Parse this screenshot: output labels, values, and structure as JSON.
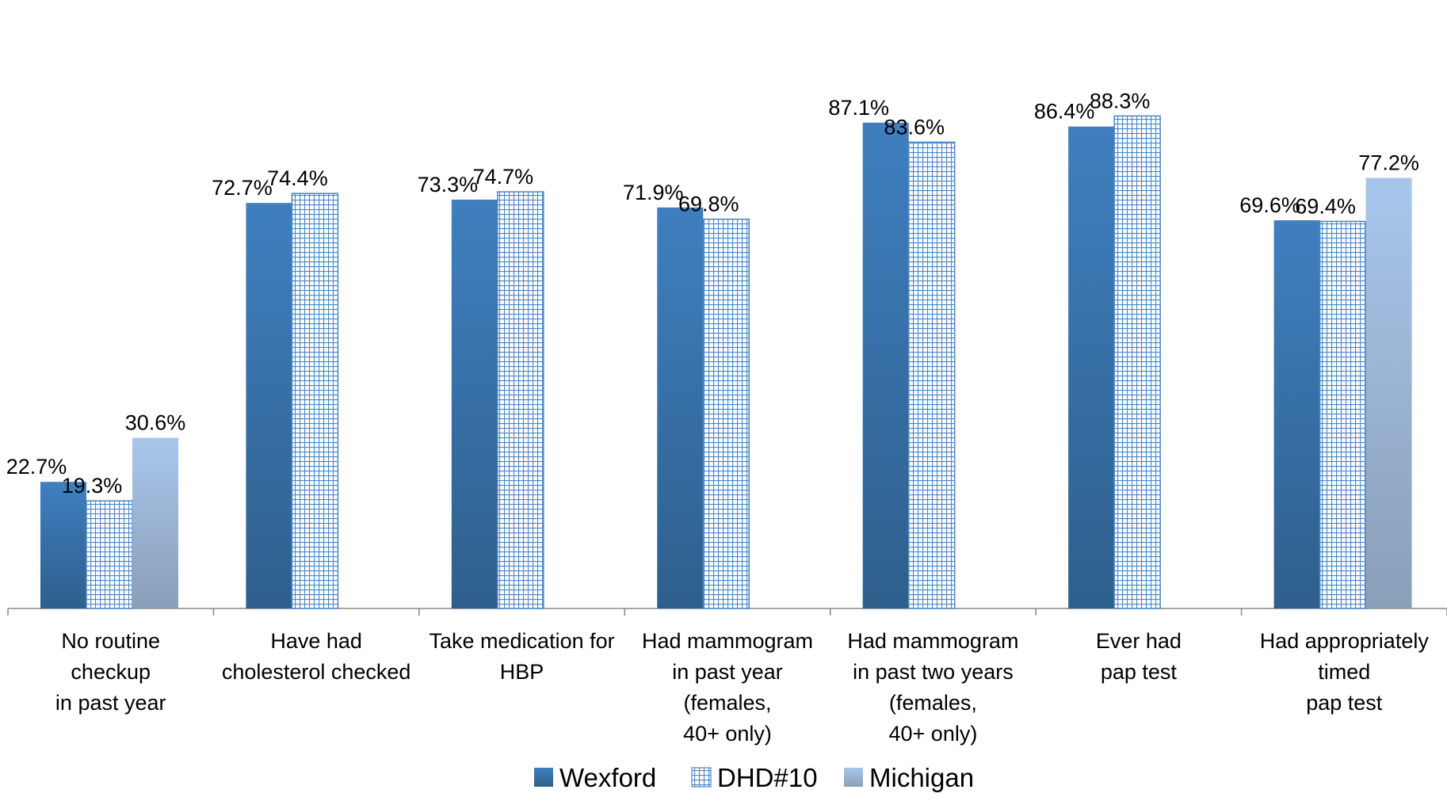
{
  "chart_data": {
    "type": "bar",
    "title": "",
    "xlabel": "",
    "ylabel": "",
    "ylim": [
      0,
      100
    ],
    "grid": false,
    "legend_position": "bottom",
    "categories": [
      [
        "No routine",
        "checkup",
        "in past year"
      ],
      [
        "Have had",
        "cholesterol checked"
      ],
      [
        "Take medication for",
        "HBP"
      ],
      [
        "Had mammogram",
        "in past year",
        "(females,",
        "40+ only)"
      ],
      [
        "Had mammogram",
        "in past two years",
        "(females,",
        "40+ only)"
      ],
      [
        "Ever had",
        "pap test"
      ],
      [
        "Had appropriately",
        "timed",
        "pap test"
      ]
    ],
    "series": [
      {
        "name": "Wexford",
        "values": [
          22.7,
          72.7,
          73.3,
          71.9,
          87.1,
          86.4,
          69.6
        ],
        "labels": [
          "22.7%",
          "72.7%",
          "73.3%",
          "71.9%",
          "87.1%",
          "86.4%",
          "69.6%"
        ],
        "color": "#3d79b5",
        "style": "gradient-solid"
      },
      {
        "name": "DHD#10",
        "values": [
          19.3,
          74.4,
          74.7,
          69.8,
          83.6,
          88.3,
          69.4
        ],
        "labels": [
          "19.3%",
          "74.4%",
          "74.7%",
          "69.8%",
          "83.6%",
          "88.3%",
          "69.4%"
        ],
        "color": "#4a86c8",
        "style": "grid-pattern"
      },
      {
        "name": "Michigan",
        "values": [
          30.6,
          null,
          null,
          null,
          null,
          null,
          77.2
        ],
        "labels": [
          "30.6%",
          null,
          null,
          null,
          null,
          null,
          "77.2%"
        ],
        "color": "#a3bfe3",
        "style": "gradient-light"
      }
    ]
  }
}
